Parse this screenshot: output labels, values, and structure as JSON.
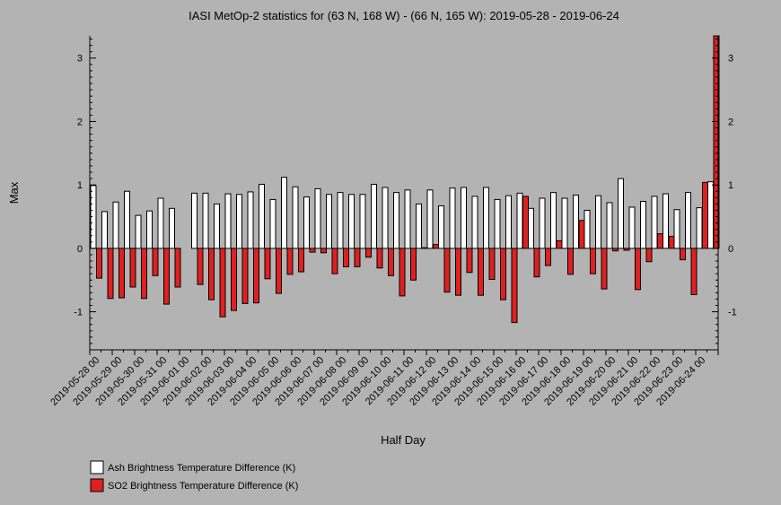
{
  "chart_data": {
    "type": "bar",
    "title": "IASI MetOp-2 statistics for (63 N, 168 W) - (66 N, 165 W): 2019-05-28 - 2019-06-24",
    "xlabel": "Half Day",
    "ylabel": "Max",
    "ylim": [
      -1.6,
      3.35
    ],
    "yticks": [
      -1,
      0,
      1,
      2,
      3
    ],
    "xtick_labels": [
      "2019-05-28 00",
      "2019-05-29 00",
      "2019-05-30 00",
      "2019-05-31 00",
      "2019-06-01 00",
      "2019-06-02 00",
      "2019-06-03 00",
      "2019-06-04 00",
      "2019-06-05 00",
      "2019-06-06 00",
      "2019-06-07 00",
      "2019-06-08 00",
      "2019-06-09 00",
      "2019-06-10 00",
      "2019-06-11 00",
      "2019-06-12 00",
      "2019-06-13 00",
      "2019-06-14 00",
      "2019-06-15 00",
      "2019-06-16 00",
      "2019-06-17 00",
      "2019-06-18 00",
      "2019-06-19 00",
      "2019-06-20 00",
      "2019-06-21 00",
      "2019-06-22 00",
      "2019-06-23 00",
      "2019-06-24 00"
    ],
    "legend_position": "bottom-left",
    "series": [
      {
        "name": "Ash Brightness Temperature Difference (K)",
        "color": "#ffffff",
        "values": [
          0.99,
          0.58,
          0.73,
          0.9,
          0.52,
          0.59,
          0.79,
          0.63,
          null,
          0.87,
          0.87,
          0.7,
          0.86,
          0.85,
          0.89,
          1.01,
          0.77,
          1.12,
          0.97,
          0.81,
          0.94,
          0.85,
          0.88,
          0.85,
          0.85,
          1.01,
          0.96,
          0.88,
          0.92,
          0.7,
          0.92,
          0.67,
          0.95,
          0.96,
          0.82,
          0.96,
          0.77,
          0.83,
          0.87,
          0.63,
          0.79,
          0.88,
          0.79,
          0.84,
          0.6,
          0.83,
          0.72,
          1.1,
          0.65,
          0.74,
          0.82,
          0.86,
          0.61,
          0.88,
          0.64,
          1.05
        ]
      },
      {
        "name": "SO2 Brightness Temperature Difference (K)",
        "color": "#e02020",
        "values": [
          -0.47,
          -0.79,
          -0.78,
          -0.61,
          -0.79,
          -0.43,
          -0.88,
          -0.61,
          null,
          -0.57,
          -0.81,
          -1.08,
          -0.98,
          -0.87,
          -0.86,
          -0.48,
          -0.71,
          -0.41,
          -0.37,
          -0.06,
          -0.07,
          -0.4,
          -0.29,
          -0.29,
          -0.14,
          -0.31,
          -0.43,
          -0.75,
          -0.5,
          0.01,
          0.06,
          -0.69,
          -0.74,
          -0.38,
          -0.74,
          -0.49,
          -0.81,
          -1.17,
          0.82,
          -0.45,
          -0.27,
          0.12,
          -0.41,
          0.44,
          -0.4,
          -0.64,
          -0.04,
          -0.03,
          -0.65,
          -0.21,
          0.23,
          0.19,
          -0.18,
          -0.73,
          1.04,
          3.35
        ]
      }
    ]
  }
}
